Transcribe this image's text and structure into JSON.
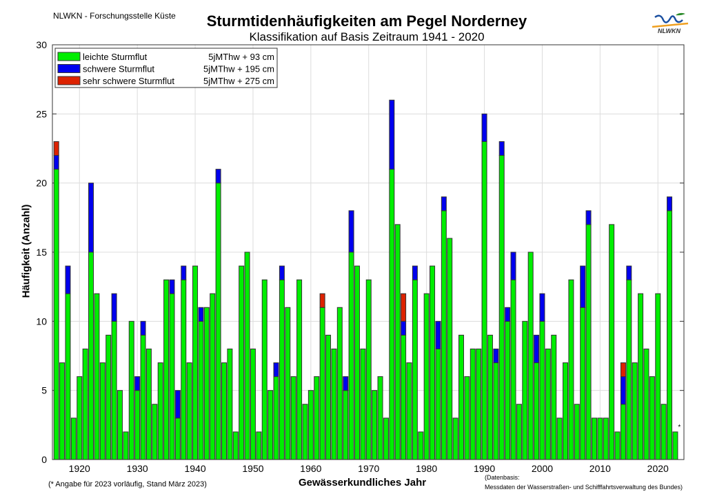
{
  "header": {
    "org": "NLWKN - Forschungsstelle Küste",
    "logo_text": "NLWKN"
  },
  "footer": {
    "note": "(* Angabe für 2023 vorläufig, Stand März 2023)",
    "source_line1": "(Datenbasis:",
    "source_line2": "Messdaten der Wasserstraßen- und Schifffahrtsverwaltung des Bundes)"
  },
  "chart_data": {
    "type": "bar",
    "stacked": true,
    "title": "Sturmtidenhäufigkeiten am Pegel Norderney",
    "subtitle": "Klassifikation auf Basis Zeitraum 1941 - 2020",
    "xlabel": "Gewässerkundliches Jahr",
    "ylabel": "Häufigkeit (Anzahl)",
    "ylim": [
      0,
      30
    ],
    "yticks": [
      0,
      5,
      10,
      15,
      20,
      25,
      30
    ],
    "xticks": [
      1920,
      1930,
      1940,
      1950,
      1960,
      1970,
      1980,
      1990,
      2000,
      2010,
      2020
    ],
    "grid": true,
    "legend_position": "top-left",
    "annotation": {
      "year": 2023,
      "text": "*"
    },
    "categories": [
      1916,
      1917,
      1918,
      1919,
      1920,
      1921,
      1922,
      1923,
      1924,
      1925,
      1926,
      1927,
      1928,
      1929,
      1930,
      1931,
      1932,
      1933,
      1934,
      1935,
      1936,
      1937,
      1938,
      1939,
      1940,
      1941,
      1942,
      1943,
      1944,
      1945,
      1946,
      1947,
      1948,
      1949,
      1950,
      1951,
      1952,
      1953,
      1954,
      1955,
      1956,
      1957,
      1958,
      1959,
      1960,
      1961,
      1962,
      1963,
      1964,
      1965,
      1966,
      1967,
      1968,
      1969,
      1970,
      1971,
      1972,
      1973,
      1974,
      1975,
      1976,
      1977,
      1978,
      1979,
      1980,
      1981,
      1982,
      1983,
      1984,
      1985,
      1986,
      1987,
      1988,
      1989,
      1990,
      1991,
      1992,
      1993,
      1994,
      1995,
      1996,
      1997,
      1998,
      1999,
      2000,
      2001,
      2002,
      2003,
      2004,
      2005,
      2006,
      2007,
      2008,
      2009,
      2010,
      2011,
      2012,
      2013,
      2014,
      2015,
      2016,
      2017,
      2018,
      2019,
      2020,
      2021,
      2022,
      2023
    ],
    "series": [
      {
        "name": "leichte Sturmflut",
        "threshold": "5jMThw +   93 cm",
        "color": "#00ee00",
        "values": [
          21,
          7,
          12,
          3,
          6,
          8,
          15,
          12,
          7,
          9,
          10,
          5,
          2,
          10,
          5,
          9,
          8,
          4,
          7,
          13,
          12,
          3,
          13,
          7,
          14,
          10,
          11,
          12,
          20,
          7,
          8,
          2,
          14,
          15,
          8,
          2,
          13,
          5,
          6,
          13,
          11,
          6,
          13,
          4,
          5,
          6,
          11,
          9,
          8,
          11,
          5,
          15,
          14,
          8,
          13,
          5,
          6,
          3,
          21,
          17,
          9,
          7,
          13,
          2,
          12,
          14,
          8,
          18,
          16,
          3,
          9,
          6,
          8,
          8,
          23,
          9,
          7,
          22,
          10,
          13,
          4,
          10,
          15,
          7,
          10,
          8,
          9,
          3,
          7,
          13,
          4,
          11,
          17,
          3,
          3,
          3,
          17,
          2,
          4,
          13,
          7,
          12,
          8,
          6,
          12,
          4,
          18,
          2
        ]
      },
      {
        "name": "schwere Sturmflut",
        "threshold": "5jMThw + 195 cm",
        "color": "#0000ee",
        "values": [
          1,
          0,
          2,
          0,
          0,
          0,
          5,
          0,
          0,
          0,
          2,
          0,
          0,
          0,
          1,
          1,
          0,
          0,
          0,
          0,
          1,
          2,
          1,
          0,
          0,
          1,
          0,
          0,
          1,
          0,
          0,
          0,
          0,
          0,
          0,
          0,
          0,
          0,
          1,
          1,
          0,
          0,
          0,
          0,
          0,
          0,
          0,
          0,
          0,
          0,
          1,
          3,
          0,
          0,
          0,
          0,
          0,
          0,
          5,
          0,
          1,
          0,
          1,
          0,
          0,
          0,
          2,
          1,
          0,
          0,
          0,
          0,
          0,
          0,
          2,
          0,
          1,
          1,
          1,
          2,
          0,
          0,
          0,
          2,
          2,
          0,
          0,
          0,
          0,
          0,
          0,
          3,
          1,
          0,
          0,
          0,
          0,
          0,
          2,
          1,
          0,
          0,
          0,
          0,
          0,
          0,
          1,
          0
        ]
      },
      {
        "name": "sehr schwere Sturmflut",
        "threshold": "5jMThw + 275 cm",
        "color": "#dd2200",
        "values": [
          1,
          0,
          0,
          0,
          0,
          0,
          0,
          0,
          0,
          0,
          0,
          0,
          0,
          0,
          0,
          0,
          0,
          0,
          0,
          0,
          0,
          0,
          0,
          0,
          0,
          0,
          0,
          0,
          0,
          0,
          0,
          0,
          0,
          0,
          0,
          0,
          0,
          0,
          0,
          0,
          0,
          0,
          0,
          0,
          0,
          0,
          1,
          0,
          0,
          0,
          0,
          0,
          0,
          0,
          0,
          0,
          0,
          0,
          0,
          0,
          2,
          0,
          0,
          0,
          0,
          0,
          0,
          0,
          0,
          0,
          0,
          0,
          0,
          0,
          0,
          0,
          0,
          0,
          0,
          0,
          0,
          0,
          0,
          0,
          0,
          0,
          0,
          0,
          0,
          0,
          0,
          0,
          0,
          0,
          0,
          0,
          0,
          0,
          1,
          0,
          0,
          0,
          0,
          0,
          0,
          0,
          0,
          0
        ]
      }
    ]
  }
}
